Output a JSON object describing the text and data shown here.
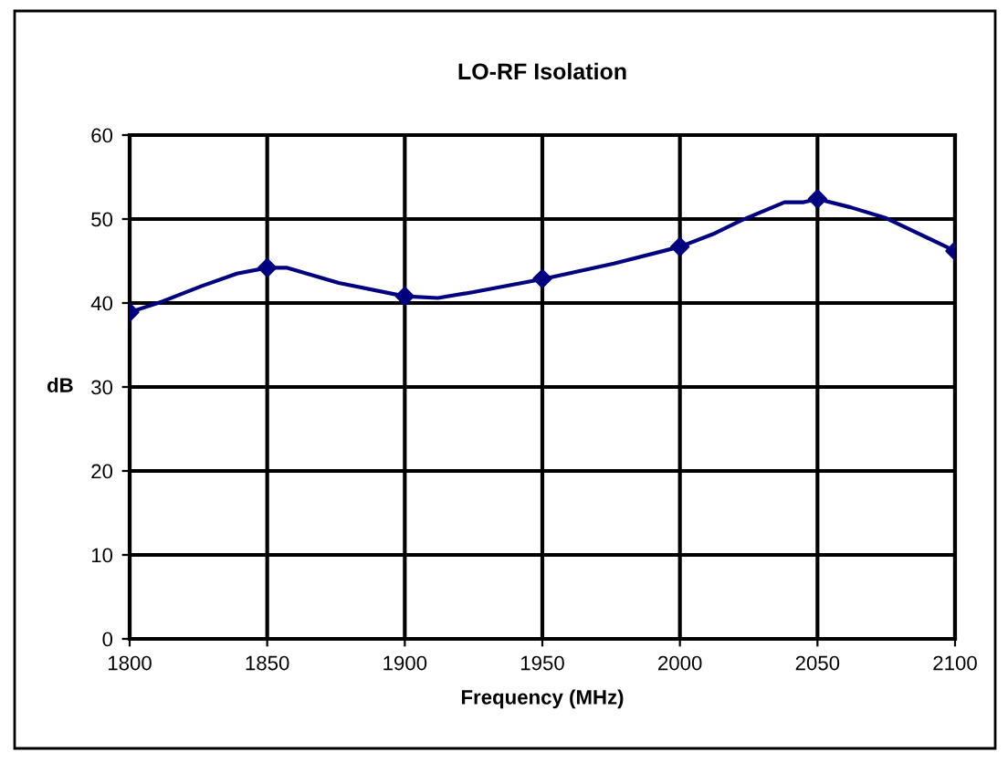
{
  "chart_data": {
    "type": "line",
    "title": "LO-RF Isolation",
    "xlabel": "Frequency (MHz)",
    "ylabel": "dB",
    "series": [
      {
        "color": "#000080",
        "marker": "none",
        "x": [
          1800,
          1812,
          1826,
          1839,
          1850,
          1857,
          1876,
          1900,
          1912,
          1925,
          1951,
          1976,
          2000,
          2012,
          2022,
          2038,
          2045,
          2050,
          2062,
          2075,
          2100
        ],
        "values": [
          38.9,
          40.2,
          42.0,
          43.5,
          44.2,
          44.2,
          42.4,
          40.8,
          40.6,
          41.3,
          42.9,
          44.7,
          46.7,
          48.2,
          49.8,
          52.0,
          52.0,
          52.4,
          51.4,
          50.1,
          46.2
        ]
      },
      {
        "type": "scatter",
        "color": "#000080",
        "marker": "diamond",
        "x": [
          1800,
          1850,
          1900,
          1950,
          2000,
          2050,
          2100
        ],
        "values": [
          38.9,
          44.2,
          40.8,
          42.9,
          46.7,
          52.4,
          46.2
        ]
      }
    ],
    "xlim": [
      1800,
      2100
    ],
    "xticks": [
      1800,
      1850,
      1900,
      1950,
      2000,
      2050,
      2100
    ],
    "ylim": [
      0,
      60
    ],
    "yticks": [
      0,
      10,
      20,
      30,
      40,
      50,
      60
    ],
    "grid": true
  }
}
